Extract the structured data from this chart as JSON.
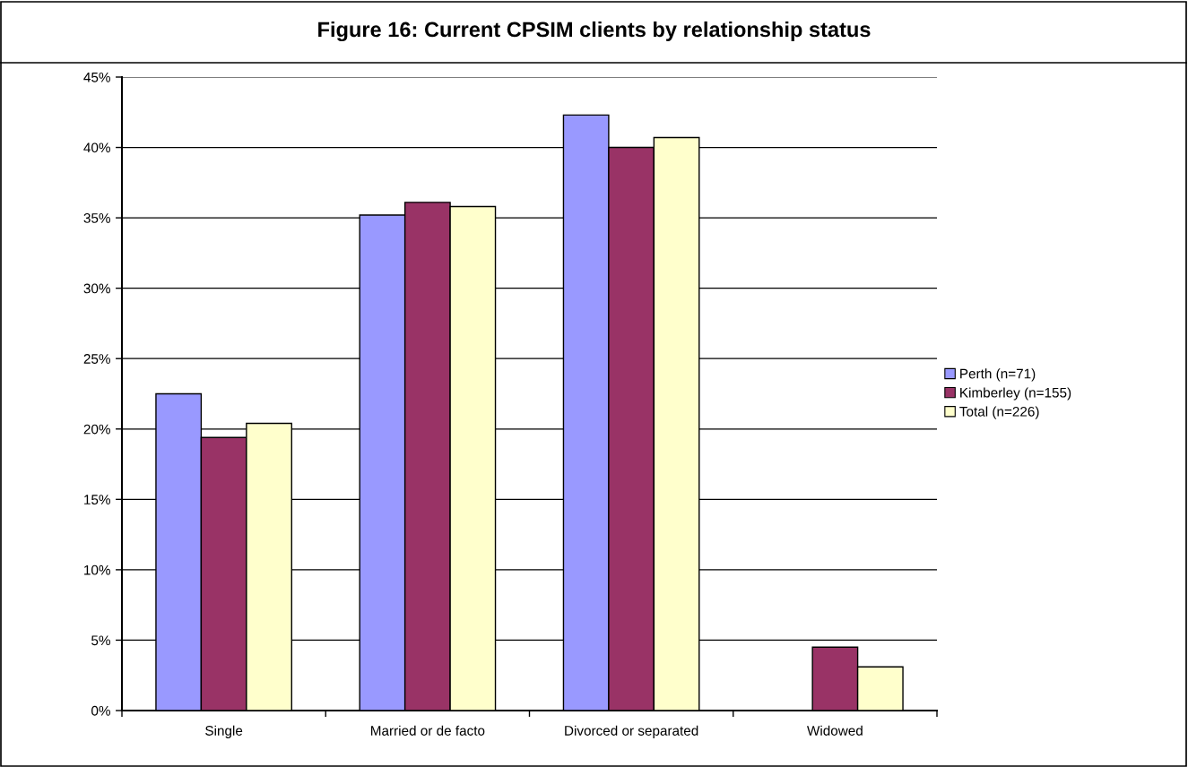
{
  "chart_data": {
    "type": "bar",
    "title": "Figure 16: Current CPSIM clients by relationship status",
    "categories": [
      "Single",
      "Married or de facto",
      "Divorced or separated",
      "Widowed"
    ],
    "series": [
      {
        "name": "Perth (n=71)",
        "color": "#9999ff",
        "values": [
          22.5,
          35.2,
          42.3,
          null
        ]
      },
      {
        "name": "Kimberley (n=155)",
        "color": "#993366",
        "values": [
          19.4,
          36.1,
          40.0,
          4.5
        ]
      },
      {
        "name": "Total (n=226)",
        "color": "#ffffcc",
        "values": [
          20.4,
          35.8,
          40.7,
          3.1
        ]
      }
    ],
    "ylim": [
      0,
      45
    ],
    "yticks": [
      {
        "value": 0,
        "label": "0%"
      },
      {
        "value": 5,
        "label": "5%"
      },
      {
        "value": 10,
        "label": "10%"
      },
      {
        "value": 15,
        "label": "15%"
      },
      {
        "value": 20,
        "label": "20%"
      },
      {
        "value": 25,
        "label": "25%"
      },
      {
        "value": 30,
        "label": "30%"
      },
      {
        "value": 35,
        "label": "35%"
      },
      {
        "value": 40,
        "label": "40%"
      },
      {
        "value": 45,
        "label": "45%"
      }
    ],
    "grid": "y",
    "legend": "right"
  }
}
